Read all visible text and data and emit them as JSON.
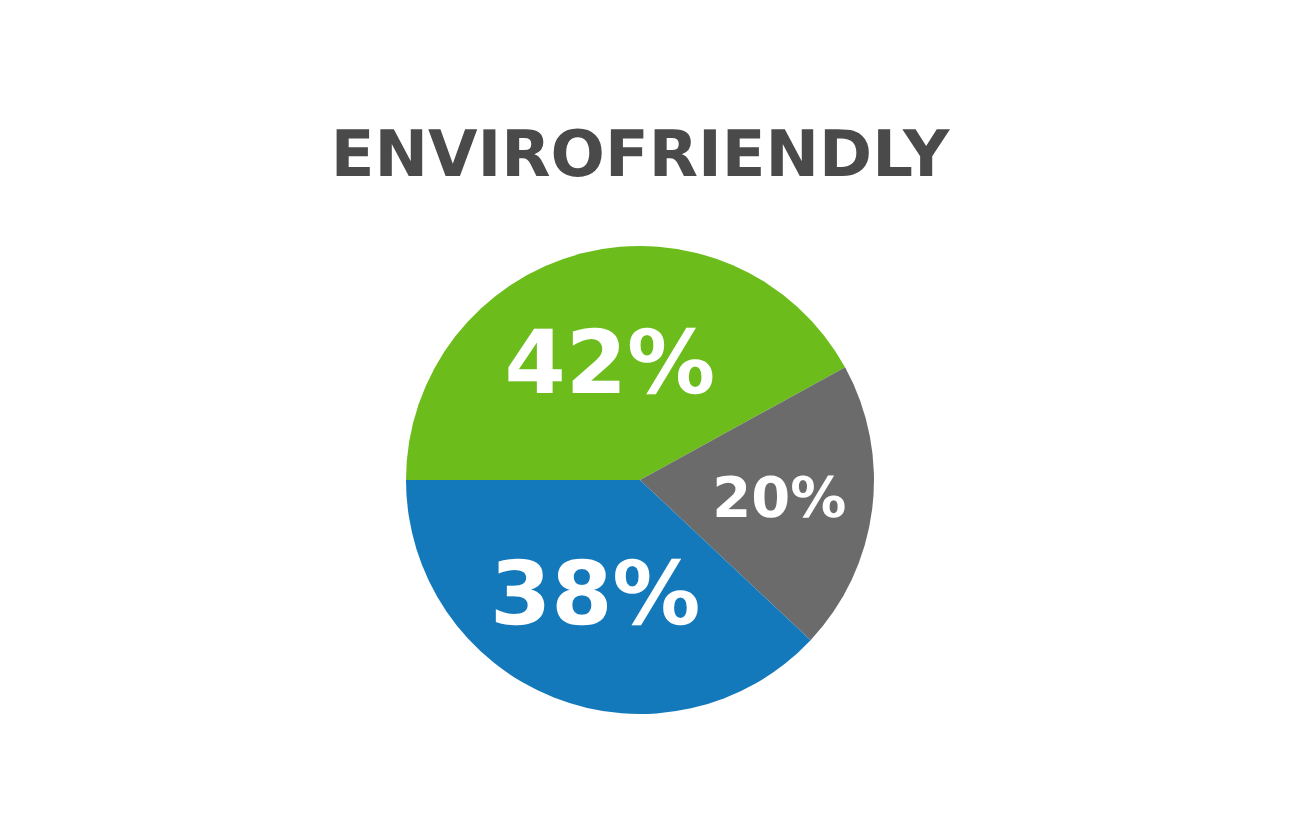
{
  "chart_data": {
    "type": "pie",
    "title": "ENVIROFRIENDLY",
    "categories": [
      null,
      null,
      null
    ],
    "values": [
      42,
      20,
      38
    ],
    "colors": [
      "#6cbd1c",
      "#6b6b6b",
      "#1479bb"
    ],
    "value_labels": [
      "42%",
      "20%",
      "38%"
    ]
  }
}
